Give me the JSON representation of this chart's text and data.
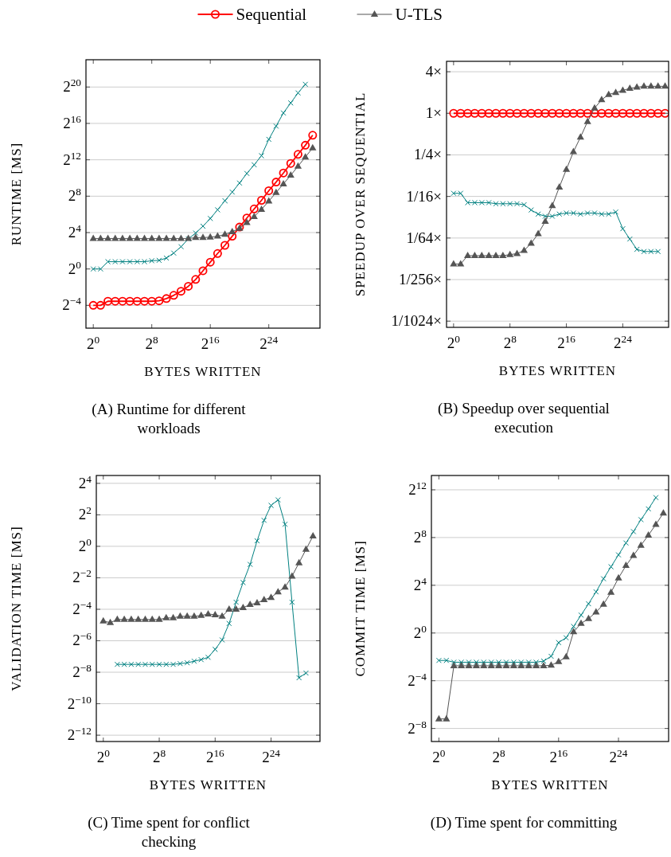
{
  "chart_data": [
    {
      "type": "line",
      "xlabel": "BYTES WRITTEN",
      "ylabel": "RUNTIME [MS]",
      "annotations": [
        "(A) Runtime for different workloads"
      ],
      "log": "xy",
      "grid": "y",
      "legend": "top",
      "x": [
        1,
        2,
        4,
        8,
        16,
        32,
        64,
        128,
        256,
        512,
        1024,
        2048,
        4096,
        8192,
        16384,
        32768,
        65536,
        131072,
        262144,
        524288,
        1048576,
        2097152,
        4194304,
        8388608,
        16777216,
        33554432,
        67108864,
        134217728,
        268435456,
        536870912,
        1073741824
      ],
      "xlim": [
        0.5,
        2147483648
      ],
      "ylim": [
        0.011,
        8388608
      ],
      "xticks": [
        {
          "value": 1,
          "label": "2$^{0}$"
        },
        {
          "value": 256,
          "label": "2$^{8}$"
        },
        {
          "value": 65536,
          "label": "2$^{16}$"
        },
        {
          "value": 16777216,
          "label": "2$^{24}$"
        }
      ],
      "yticks": [
        {
          "value": 0.0625,
          "label": "2$^{−4}$"
        },
        {
          "value": 1,
          "label": "2$^{0}$"
        },
        {
          "value": 16,
          "label": "2$^{4}$"
        },
        {
          "value": 256,
          "label": "2$^{8}$"
        },
        {
          "value": 4096,
          "label": "2$^{12}$"
        },
        {
          "value": 65536,
          "label": "2$^{16}$"
        },
        {
          "value": 1048576,
          "label": "2$^{20}$"
        }
      ],
      "series": [
        {
          "name": "Sequential",
          "color": "#ff0000",
          "marker": "circle",
          "values": [
            0.0625,
            0.0625,
            0.0854,
            0.0854,
            0.0854,
            0.0854,
            0.0854,
            0.0854,
            0.0854,
            0.0884,
            0.105,
            0.134,
            0.183,
            0.268,
            0.451,
            0.871,
            1.68,
            3.25,
            6.06,
            12.1,
            24.3,
            48.5,
            97.0,
            187,
            388,
            750,
            1499,
            3104,
            6208,
            12417,
            26624
          ]
        },
        {
          "color": "#008080",
          "marker": "cross",
          "values": [
            1,
            1,
            1.74,
            1.74,
            1.74,
            1.74,
            1.74,
            1.74,
            1.87,
            1.93,
            2.3,
            3.36,
            5.46,
            9.85,
            15.5,
            26.0,
            46.9,
            90.5,
            181,
            350,
            699,
            1448,
            2798,
            5595,
            19484,
            53248,
            145490,
            311690,
            668467,
            1290780,
            null
          ]
        },
        {
          "name": "U-TLS",
          "color": "#555555",
          "marker": "triangle",
          "values": [
            10.2,
            10.2,
            10.2,
            10.2,
            10.2,
            10.2,
            10.2,
            10.2,
            10.2,
            10.2,
            10.2,
            10.2,
            10.2,
            10.2,
            10.9,
            10.9,
            11.3,
            12.1,
            13.9,
            17.1,
            21.9,
            34.3,
            53.8,
            93.7,
            175,
            338,
            653,
            1261,
            2521,
            5042,
            10084
          ]
        }
      ]
    },
    {
      "type": "line",
      "xlabel": "BYTES WRITTEN",
      "ylabel": "SPEEDUP OVER SEQUENTIAL",
      "annotations": [
        "(B) Speedup over sequential execution"
      ],
      "log": "xy",
      "grid": "y",
      "legend": false,
      "x": [
        1,
        2,
        4,
        8,
        16,
        32,
        64,
        128,
        256,
        512,
        1024,
        2048,
        4096,
        8192,
        16384,
        32768,
        65536,
        131072,
        262144,
        524288,
        1048576,
        2097152,
        4194304,
        8388608,
        16777216,
        33554432,
        67108864,
        134217728,
        268435456,
        536870912,
        1073741824
      ],
      "xlim": [
        0.5,
        1518500250
      ],
      "ylim": [
        0.000794,
        5.66
      ],
      "xticks": [
        {
          "value": 1,
          "label": "2$^{0}$"
        },
        {
          "value": 256,
          "label": "2$^{8}$"
        },
        {
          "value": 65536,
          "label": "2$^{16}$"
        },
        {
          "value": 16777216,
          "label": "2$^{24}$"
        }
      ],
      "yticks": [
        {
          "value": 0.0009765625,
          "label": "1/1024×"
        },
        {
          "value": 0.00390625,
          "label": "1/256×"
        },
        {
          "value": 0.015625,
          "label": "1/64×"
        },
        {
          "value": 0.0625,
          "label": "1/16×"
        },
        {
          "value": 0.25,
          "label": "1/4×"
        },
        {
          "value": 1,
          "label": "1×"
        },
        {
          "value": 4,
          "label": "4×"
        }
      ],
      "series": [
        {
          "color": "#ff0000",
          "marker": "circle",
          "values": [
            1,
            1,
            1,
            1,
            1,
            1,
            1,
            1,
            1,
            1,
            1,
            1,
            1,
            1,
            1,
            1,
            1,
            1,
            1,
            1,
            1,
            1,
            1,
            1,
            1,
            1,
            1,
            1,
            1,
            1,
            1
          ]
        },
        {
          "color": "#008080",
          "marker": "cross",
          "values": [
            0.0694,
            0.0694,
            0.0508,
            0.0508,
            0.0508,
            0.0508,
            0.049,
            0.049,
            0.049,
            0.049,
            0.0474,
            0.0398,
            0.0347,
            0.0323,
            0.0323,
            0.0347,
            0.0359,
            0.0359,
            0.0347,
            0.0359,
            0.0359,
            0.0347,
            0.0347,
            0.0372,
            0.0213,
            0.0151,
            0.0107,
            0.00996,
            0.00996,
            0.00996,
            null
          ]
        },
        {
          "color": "#555555",
          "marker": "triangle",
          "values": [
            0.00657,
            0.00657,
            0.00867,
            0.00867,
            0.00867,
            0.00867,
            0.00867,
            0.00867,
            0.00898,
            0.00929,
            0.0103,
            0.0131,
            0.018,
            0.0272,
            0.0458,
            0.0854,
            0.154,
            0.277,
            0.451,
            0.758,
            1.19,
            1.57,
            1.87,
            2,
            2.14,
            2.3,
            2.38,
            2.46,
            2.46,
            2.46,
            2.46
          ]
        }
      ]
    },
    {
      "type": "line",
      "xlabel": "BYTES WRITTEN",
      "ylabel": "VALIDATION TIME [MS]",
      "annotations": [
        "(C) Time spent for conflict checking"
      ],
      "log": "xy",
      "grid": "y",
      "legend": false,
      "x": [
        1,
        2,
        4,
        8,
        16,
        32,
        64,
        128,
        256,
        512,
        1024,
        2048,
        4096,
        8192,
        16384,
        32768,
        65536,
        131072,
        262144,
        524288,
        1048576,
        2097152,
        4194304,
        8388608,
        16777216,
        33554432,
        67108864,
        134217728,
        268435456,
        536870912,
        1073741824
      ],
      "xlim": [
        0.5,
        2147483648
      ],
      "ylim": [
        0.000185,
        22.6
      ],
      "xticks": [
        {
          "value": 1,
          "label": "2$^{0}$"
        },
        {
          "value": 256,
          "label": "2$^{8}$"
        },
        {
          "value": 65536,
          "label": "2$^{16}$"
        },
        {
          "value": 16777216,
          "label": "2$^{24}$"
        }
      ],
      "yticks": [
        {
          "value": 0.000244140625,
          "label": "2$^{−12}$"
        },
        {
          "value": 0.0009765625,
          "label": "2$^{−10}$"
        },
        {
          "value": 0.00390625,
          "label": "2$^{−8}$"
        },
        {
          "value": 0.015625,
          "label": "2$^{−6}$"
        },
        {
          "value": 0.0625,
          "label": "2$^{−4}$"
        },
        {
          "value": 0.25,
          "label": "2$^{−2}$"
        },
        {
          "value": 1,
          "label": "2$^{0}$"
        },
        {
          "value": 4,
          "label": "2$^{2}$"
        },
        {
          "value": 16,
          "label": "2$^{4}$"
        }
      ],
      "series": [
        {
          "color": "#008080",
          "marker": "cross",
          "values": [
            null,
            null,
            0.00552,
            0.00552,
            0.00552,
            0.00552,
            0.00552,
            0.00552,
            0.00552,
            0.00552,
            0.00552,
            0.00571,
            0.00592,
            0.00635,
            0.0068,
            0.00754,
            0.0107,
            0.0162,
            0.0335,
            0.0854,
            0.203,
            0.451,
            1.27,
            3.14,
            6.06,
            7.73,
            2.64,
            0.0854,
            0.00306,
            0.00377,
            null
          ]
        },
        {
          "color": "#555555",
          "marker": "triangle",
          "values": [
            0.0372,
            0.0347,
            0.0398,
            0.0398,
            0.0398,
            0.0398,
            0.0398,
            0.0398,
            0.0398,
            0.0427,
            0.0427,
            0.0458,
            0.0458,
            0.0458,
            0.0474,
            0.0508,
            0.049,
            0.0458,
            0.0625,
            0.0625,
            0.067,
            0.0769,
            0.0825,
            0.0947,
            0.105,
            0.134,
            0.165,
            0.268,
            0.483,
            0.871,
            1.57
          ]
        }
      ]
    },
    {
      "type": "line",
      "xlabel": "BYTES WRITTEN",
      "ylabel": "COMMIT TIME [MS]",
      "annotations": [
        "(D) Time spent for committing"
      ],
      "log": "xy",
      "grid": "y",
      "legend": false,
      "x": [
        1,
        2,
        4,
        8,
        16,
        32,
        64,
        128,
        256,
        512,
        1024,
        2048,
        4096,
        8192,
        16384,
        32768,
        65536,
        131072,
        262144,
        524288,
        1048576,
        2097152,
        4194304,
        8388608,
        16777216,
        33554432,
        67108864,
        134217728,
        268435456,
        536870912,
        1073741824
      ],
      "xlim": [
        0.5,
        1744200000
      ],
      "ylim": [
        0.00183,
        9410
      ],
      "xticks": [
        {
          "value": 1,
          "label": "2$^{0}$"
        },
        {
          "value": 256,
          "label": "2$^{8}$"
        },
        {
          "value": 65536,
          "label": "2$^{16}$"
        },
        {
          "value": 16777216,
          "label": "2$^{24}$"
        }
      ],
      "yticks": [
        {
          "value": 0.00390625,
          "label": "2$^{−8}$"
        },
        {
          "value": 0.0625,
          "label": "2$^{−4}$"
        },
        {
          "value": 1,
          "label": "2$^{0}$"
        },
        {
          "value": 16,
          "label": "2$^{4}$"
        },
        {
          "value": 256,
          "label": "2$^{8}$"
        },
        {
          "value": 4096,
          "label": "2$^{12}$"
        }
      ],
      "series": [
        {
          "color": "#008080",
          "marker": "cross",
          "values": [
            0.203,
            0.203,
            0.183,
            0.183,
            0.183,
            0.183,
            0.183,
            0.183,
            0.183,
            0.183,
            0.183,
            0.183,
            0.183,
            0.183,
            0.196,
            0.259,
            0.574,
            0.758,
            1.46,
            2.83,
            5.46,
            10.9,
            23.4,
            46.9,
            93.7,
            187,
            362,
            724,
            1352,
            2611,
            null
          ]
        },
        {
          "color": "#555555",
          "marker": "triangle",
          "values": [
            0.0068,
            0.0068,
            0.149,
            0.149,
            0.149,
            0.149,
            0.149,
            0.149,
            0.149,
            0.149,
            0.149,
            0.149,
            0.149,
            0.149,
            0.149,
            0.154,
            0.189,
            0.25,
            1.07,
            1.74,
            2.3,
            3.36,
            5.28,
            10.6,
            24.3,
            50.2,
            90.5,
            163,
            294,
            549,
            1060
          ]
        }
      ]
    }
  ]
}
